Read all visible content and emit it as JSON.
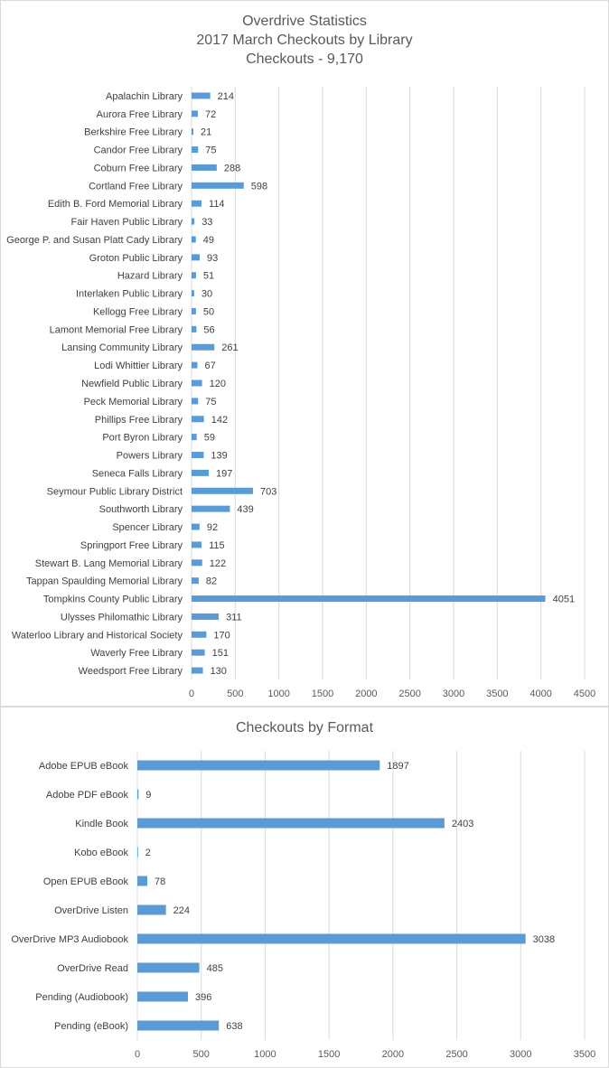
{
  "chart_data": [
    {
      "type": "bar",
      "orientation": "horizontal",
      "title_lines": [
        "Overdrive Statistics",
        "2017 March Checkouts by Library",
        "Checkouts - 9,170"
      ],
      "categories": [
        "Apalachin Library",
        "Aurora Free Library",
        "Berkshire Free Library",
        "Candor Free Library",
        "Coburn Free Library",
        "Cortland Free Library",
        "Edith B. Ford Memorial Library",
        "Fair Haven Public Library",
        "George P. and Susan Platt Cady Library",
        "Groton Public Library",
        "Hazard Library",
        "Interlaken Public Library",
        "Kellogg Free Library",
        "Lamont Memorial Free Library",
        "Lansing Community Library",
        "Lodi Whittier Library",
        "Newfield Public Library",
        "Peck Memorial Library",
        "Phillips Free Library",
        "Port Byron Library",
        "Powers Library",
        "Seneca Falls Library",
        "Seymour Public Library District",
        "Southworth Library",
        "Spencer Library",
        "Springport Free Library",
        "Stewart B. Lang Memorial Library",
        "Tappan Spaulding Memorial Library",
        "Tompkins County Public Library",
        "Ulysses Philomathic Library",
        "Waterloo Library and Historical Society",
        "Waverly Free Library",
        "Weedsport Free Library"
      ],
      "values": [
        214,
        72,
        21,
        75,
        288,
        598,
        114,
        33,
        49,
        93,
        51,
        30,
        50,
        56,
        261,
        67,
        120,
        75,
        142,
        59,
        139,
        197,
        703,
        439,
        92,
        115,
        122,
        82,
        4051,
        311,
        170,
        151,
        130
      ],
      "xlim": [
        0,
        4500
      ],
      "xticks": [
        "0",
        "500",
        "1000",
        "1500",
        "2000",
        "2500",
        "3000",
        "3500",
        "4000",
        "4500"
      ],
      "grid": "vertical",
      "legend": "none",
      "bar_color": "#5b9bd5"
    },
    {
      "type": "bar",
      "orientation": "horizontal",
      "title_lines": [
        "Checkouts by Format"
      ],
      "categories": [
        "Adobe EPUB eBook",
        "Adobe PDF eBook",
        "Kindle Book",
        "Kobo eBook",
        "Open EPUB eBook",
        "OverDrive Listen",
        "OverDrive MP3 Audiobook",
        "OverDrive Read",
        "Pending (Audiobook)",
        "Pending (eBook)"
      ],
      "values": [
        1897,
        9,
        2403,
        2,
        78,
        224,
        3038,
        485,
        396,
        638
      ],
      "xlim": [
        0,
        3500
      ],
      "xticks": [
        "0",
        "500",
        "1000",
        "1500",
        "2000",
        "2500",
        "3000",
        "3500"
      ],
      "grid": "vertical",
      "legend": "none",
      "bar_color": "#5b9bd5"
    }
  ]
}
